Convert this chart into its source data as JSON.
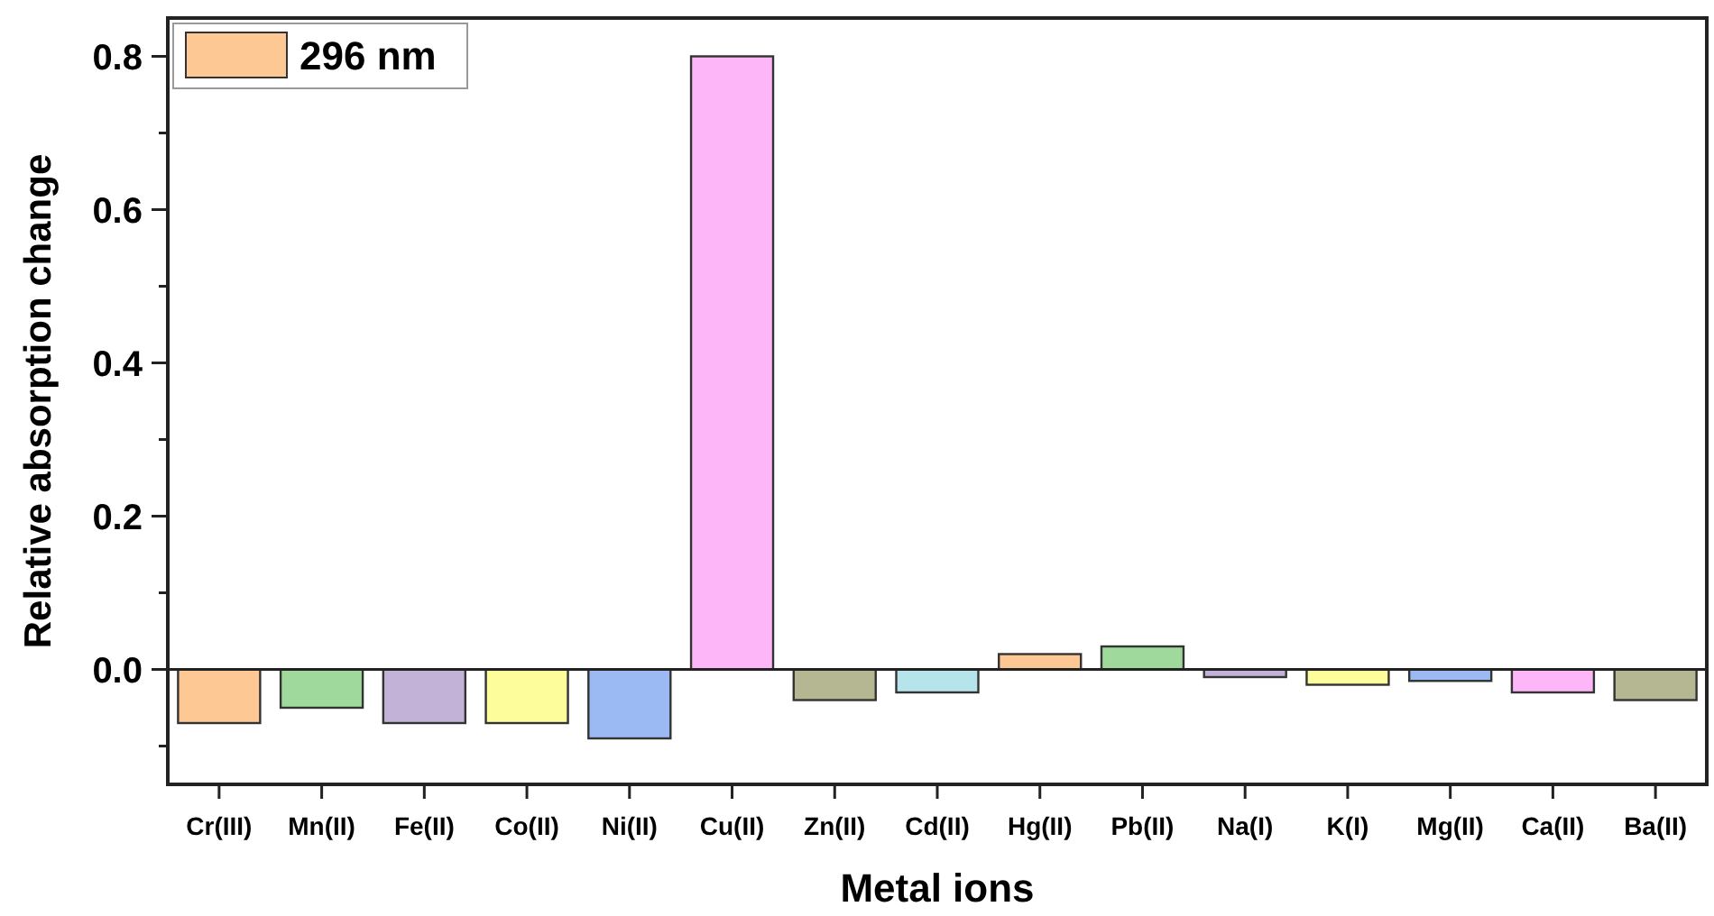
{
  "chart_data": {
    "type": "bar",
    "xlabel": "Metal ions",
    "ylabel": "Relative absorption change",
    "categories": [
      "Cr(III)",
      "Mn(II)",
      "Fe(II)",
      "Co(II)",
      "Ni(II)",
      "Cu(II)",
      "Zn(II)",
      "Cd(II)",
      "Hg(II)",
      "Pb(II)",
      "Na(I)",
      "K(I)",
      "Mg(II)",
      "Ca(II)",
      "Ba(II)"
    ],
    "series": [
      {
        "name": "296 nm",
        "color": "#fdc893",
        "values": [
          -0.07,
          -0.05,
          -0.07,
          -0.07,
          -0.09,
          0.8,
          -0.04,
          -0.03,
          0.02,
          0.03,
          -0.01,
          -0.02,
          -0.015,
          -0.03,
          -0.04
        ],
        "colors": [
          "#fdc893",
          "#a0d99c",
          "#c3b2d8",
          "#fefd9b",
          "#9bb9f2",
          "#fdb6f7",
          "#b4b791",
          "#b5e4ea",
          "#fdc893",
          "#a0d99c",
          "#c3b2d8",
          "#fefd9b",
          "#9bb9f2",
          "#fdb6f7",
          "#b4b791"
        ]
      }
    ],
    "ylim": [
      -0.15,
      0.85
    ],
    "yticks": [
      {
        "value": -0.1,
        "label": null
      },
      {
        "value": 0,
        "label": "0.0"
      },
      {
        "value": 0.1,
        "label": null
      },
      {
        "value": 0.2,
        "label": "0.2"
      },
      {
        "value": 0.3,
        "label": null
      },
      {
        "value": 0.4,
        "label": "0.4"
      },
      {
        "value": 0.5,
        "label": null
      },
      {
        "value": 0.6,
        "label": "0.6"
      },
      {
        "value": 0.7,
        "label": null
      },
      {
        "value": 0.8,
        "label": "0.8"
      }
    ],
    "ref_lines": [
      {
        "axis": "y",
        "value": 0,
        "color": "#222222"
      }
    ],
    "legend": "top left"
  }
}
